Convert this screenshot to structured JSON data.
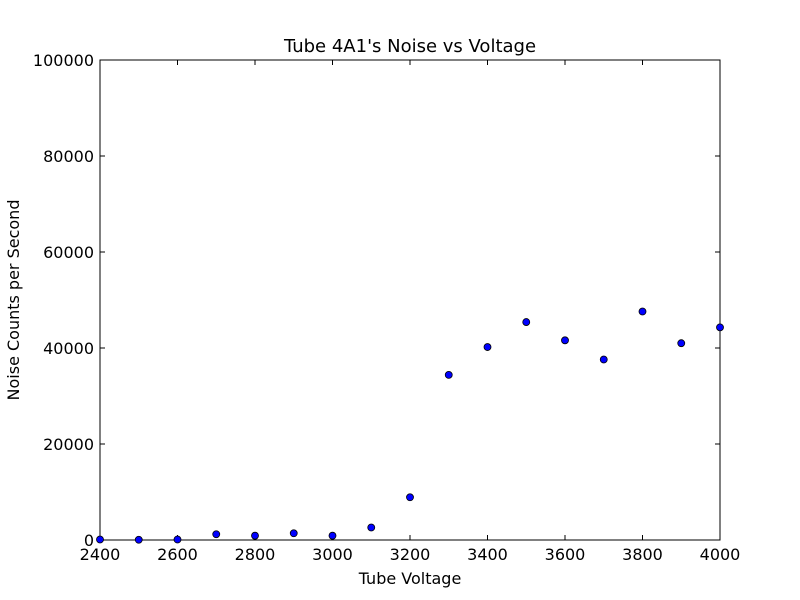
{
  "chart_data": {
    "type": "scatter",
    "title": "Tube 4A1's Noise vs Voltage",
    "xlabel": "Tube Voltage",
    "ylabel": "Noise Counts per Second",
    "xlim": [
      2400,
      4000
    ],
    "ylim": [
      0,
      100000
    ],
    "xticks": [
      "2400",
      "2600",
      "2800",
      "3000",
      "3200",
      "3400",
      "3600",
      "3800",
      "4000"
    ],
    "yticks": [
      "0",
      "20000",
      "40000",
      "60000",
      "80000",
      "100000"
    ],
    "grid": false,
    "marker_color": "#0000ff",
    "x": [
      2400,
      2500,
      2600,
      2700,
      2800,
      2900,
      3000,
      3100,
      3200,
      3300,
      3400,
      3500,
      3600,
      3700,
      3800,
      3900,
      4000
    ],
    "y": [
      100,
      50,
      100,
      1200,
      900,
      1400,
      900,
      2600,
      8900,
      34400,
      40200,
      45400,
      41600,
      37600,
      47600,
      41000,
      44300
    ]
  }
}
